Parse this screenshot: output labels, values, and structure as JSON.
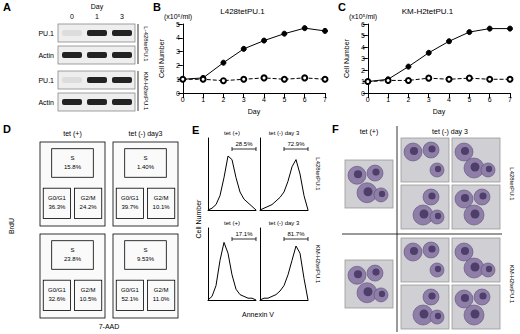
{
  "figure": {
    "A": {
      "panel": "A",
      "header": "Day",
      "lanes": [
        "0",
        "1",
        "3"
      ],
      "blots": [
        {
          "cell_line": "L-428tetPU.1",
          "rows": [
            "PU.1",
            "Actin"
          ]
        },
        {
          "cell_line": "KM-H2tetPU.1",
          "rows": [
            "PU.1",
            "Actin"
          ]
        }
      ]
    },
    "D": {
      "panel": "D",
      "y_label": "BrdU",
      "x_label": "7-AAD",
      "columns": [
        "tet (+)",
        "tet (-) day3"
      ],
      "plots": [
        [
          {
            "gates": [
              {
                "name": "S",
                "value": "15.8%"
              },
              {
                "name": "G0/G1",
                "value": "36.3%"
              },
              {
                "name": "G2/M",
                "value": "24.2%"
              }
            ]
          },
          {
            "gates": [
              {
                "name": "S",
                "value": "1.40%"
              },
              {
                "name": "G0/G1",
                "value": "39.7%"
              },
              {
                "name": "G2/M",
                "value": "10.1%"
              }
            ]
          }
        ],
        [
          {
            "gates": [
              {
                "name": "S",
                "value": "23.8%"
              },
              {
                "name": "G0/G1",
                "value": "32.6%"
              },
              {
                "name": "G2/M",
                "value": "10.5%"
              }
            ]
          },
          {
            "gates": [
              {
                "name": "S",
                "value": "9.53%"
              },
              {
                "name": "G0/G1",
                "value": "52.1%"
              },
              {
                "name": "G2/M",
                "value": "11.0%"
              }
            ]
          }
        ]
      ]
    },
    "E": {
      "panel": "E",
      "y_label": "Cell Number",
      "x_label": "Annexin V",
      "rows": [
        "L428tetPU.1",
        "KM-H2tetPU.1"
      ]
    },
    "F": {
      "panel": "F",
      "columns": [
        "tet (+)",
        "tet (-) day 3"
      ],
      "rows": [
        "L428tetPU.1",
        "KM-H2tetPU.1"
      ]
    }
  },
  "chart_data": [
    {
      "panel": "B",
      "type": "line",
      "title": "L428tetPU.1",
      "annotation": "(x10⁵/ml)",
      "x_label": "Day",
      "y_label": "Cell Number",
      "x": [
        0,
        1,
        2,
        3,
        4,
        5,
        6,
        7
      ],
      "series": [
        {
          "values": [
            1.0,
            1.1,
            2.2,
            3.2,
            3.8,
            4.3,
            4.7,
            4.5
          ],
          "color": "#000000",
          "marker": "circle",
          "line_style": "solid"
        },
        {
          "values": [
            1.0,
            1.0,
            0.9,
            1.0,
            1.1,
            1.0,
            1.1,
            1.0
          ],
          "color": "#000000",
          "marker": "open_circle",
          "line_style": "dashed"
        }
      ],
      "xlim": [
        0,
        7
      ],
      "ylim": [
        0,
        5
      ],
      "xticks": [
        0,
        1,
        2,
        3,
        4,
        5,
        6,
        7
      ],
      "yticks": [
        0,
        1,
        2,
        3,
        4,
        5
      ],
      "grid": false
    },
    {
      "panel": "C",
      "type": "line",
      "title": "KM-H2tetPU.1",
      "annotation": "(x10⁵/ml)",
      "x_label": "Day",
      "y_label": "Cell Number",
      "x": [
        0,
        1,
        2,
        3,
        4,
        5,
        6,
        7
      ],
      "series": [
        {
          "values": [
            1.0,
            1.2,
            2.3,
            3.5,
            4.5,
            5.3,
            5.6,
            5.6
          ],
          "color": "#000000",
          "marker": "circle",
          "line_style": "solid"
        },
        {
          "values": [
            1.0,
            1.1,
            1.1,
            1.3,
            1.2,
            1.3,
            1.2,
            1.2
          ],
          "color": "#000000",
          "marker": "open_circle",
          "line_style": "dashed"
        }
      ],
      "xlim": [
        0,
        7
      ],
      "ylim": [
        0,
        6
      ],
      "xticks": [
        0,
        1,
        2,
        3,
        4,
        5,
        6,
        7
      ],
      "yticks": [
        0,
        1,
        2,
        3,
        4,
        5,
        6
      ],
      "grid": false
    },
    {
      "panel": "E",
      "type": "line",
      "title": "tet (+)",
      "annotation": "28.5%",
      "gate": [
        6,
        12
      ],
      "x": [
        0,
        1,
        2,
        3,
        4,
        5,
        6,
        7,
        8,
        9,
        10,
        11,
        12
      ],
      "values": [
        0,
        1,
        3,
        8,
        18,
        30,
        28,
        18,
        10,
        6,
        4,
        2,
        0
      ],
      "xlim": [
        0,
        12
      ],
      "ylim": [
        0,
        40
      ],
      "tick_labels": false,
      "color": "#000000"
    },
    {
      "panel": "E",
      "type": "line",
      "title": "tet (-) day 3",
      "annotation": "72.9%",
      "gate": [
        6,
        12
      ],
      "x": [
        0,
        1,
        2,
        3,
        4,
        5,
        6,
        7,
        8,
        9,
        10,
        11,
        12
      ],
      "values": [
        0,
        1,
        2,
        3,
        5,
        7,
        10,
        16,
        24,
        28,
        20,
        8,
        0
      ],
      "xlim": [
        0,
        12
      ],
      "ylim": [
        0,
        40
      ],
      "tick_labels": false,
      "color": "#000000"
    },
    {
      "panel": "E",
      "type": "line",
      "title": "tet (+)",
      "annotation": "17.1%",
      "gate": [
        6,
        12
      ],
      "x": [
        0,
        1,
        2,
        3,
        4,
        5,
        6,
        7,
        8,
        9,
        10,
        11,
        12
      ],
      "values": [
        0,
        2,
        8,
        22,
        32,
        26,
        14,
        6,
        3,
        2,
        1,
        1,
        0
      ],
      "xlim": [
        0,
        12
      ],
      "ylim": [
        0,
        40
      ],
      "tick_labels": false,
      "color": "#000000"
    },
    {
      "panel": "E",
      "type": "line",
      "title": "tet (-) day 3",
      "annotation": "81.7%",
      "gate": [
        6,
        12
      ],
      "x": [
        0,
        1,
        2,
        3,
        4,
        5,
        6,
        7,
        8,
        9,
        10,
        11,
        12
      ],
      "values": [
        0,
        1,
        1,
        2,
        3,
        5,
        8,
        14,
        22,
        30,
        26,
        12,
        0
      ],
      "xlim": [
        0,
        12
      ],
      "ylim": [
        0,
        40
      ],
      "tick_labels": false,
      "color": "#000000"
    }
  ]
}
